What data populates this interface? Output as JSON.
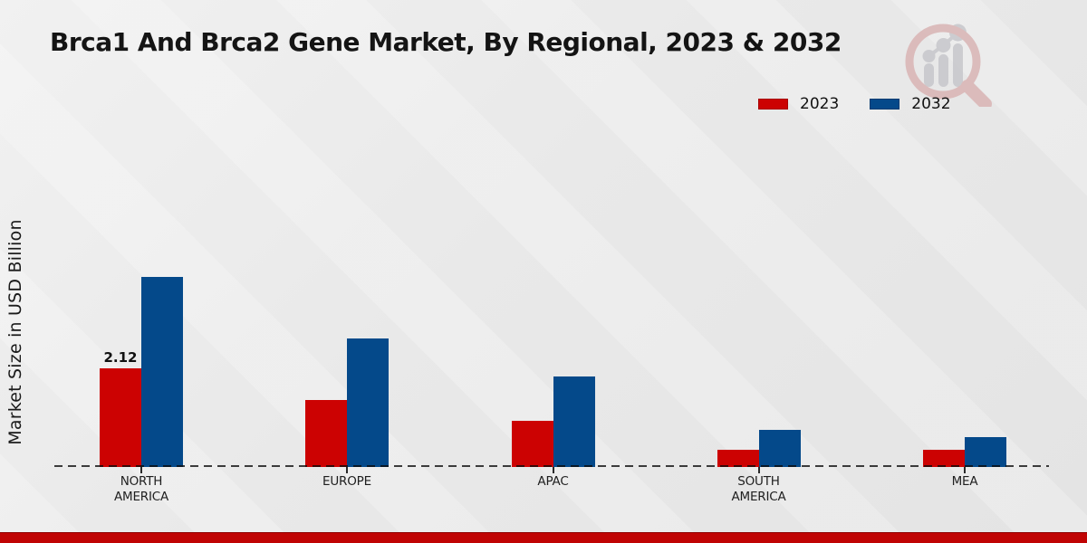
{
  "page": {
    "title": "Brca1 And Brca2 Gene Market, By Regional, 2023 & 2032"
  },
  "branding": {
    "logo_icon": "magnifier-growth-chart-watermark",
    "footer_band_color": "#c00404",
    "logo_ring_color": "#d9b4b4",
    "logo_bar_color": "#c7c7cb"
  },
  "chart_data": {
    "type": "bar",
    "title": "Brca1 And Brca2 Gene Market, By Regional, 2023 & 2032",
    "ylabel": "Market Size in USD Billion",
    "xlabel": "",
    "categories": [
      "NORTH AMERICA",
      "EUROPE",
      "APAC",
      "SOUTH AMERICA",
      "MEA"
    ],
    "category_label_lines": [
      [
        "NORTH",
        "AMERICA"
      ],
      [
        "EUROPE"
      ],
      [
        "APAC"
      ],
      [
        "SOUTH",
        "AMERICA"
      ],
      [
        "MEA"
      ]
    ],
    "series": [
      {
        "name": "2023",
        "color": "#cc0202",
        "values": [
          2.12,
          1.44,
          0.99,
          0.37,
          0.37
        ]
      },
      {
        "name": "2032",
        "color": "#04498a",
        "values": [
          4.08,
          2.76,
          1.95,
          0.8,
          0.64
        ]
      }
    ],
    "annotations": [
      {
        "category_index": 0,
        "series_index": 0,
        "text": "2.12"
      }
    ],
    "legend_position": "top-right",
    "baseline_style": "dashed",
    "grid": false,
    "y_axis_ticks_visible": false,
    "ylim": [
      0,
      4.5
    ]
  }
}
